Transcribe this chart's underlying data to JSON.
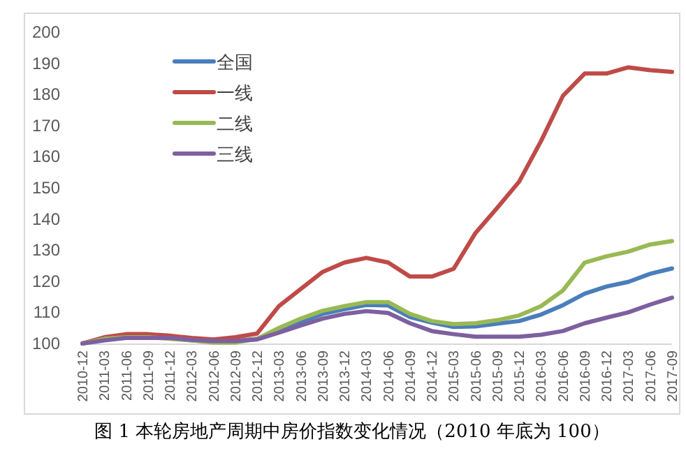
{
  "chart_data": {
    "type": "line",
    "x": [
      "2010-12",
      "2011-03",
      "2011-06",
      "2011-09",
      "2011-12",
      "2012-03",
      "2012-06",
      "2012-09",
      "2012-12",
      "2013-03",
      "2013-06",
      "2013-09",
      "2013-12",
      "2014-03",
      "2014-06",
      "2014-09",
      "2014-12",
      "2015-03",
      "2015-06",
      "2015-09",
      "2015-12",
      "2016-03",
      "2016-06",
      "2016-09",
      "2016-12",
      "2017-03",
      "2017-06",
      "2017-09"
    ],
    "xlim": [
      "2010-12",
      "2017-09"
    ],
    "xticks": [
      "2010-12",
      "2011-03",
      "2011-06",
      "2011-09",
      "2011-12",
      "2012-03",
      "2012-06",
      "2012-09",
      "2012-12",
      "2013-03",
      "2013-06",
      "2013-09",
      "2013-12",
      "2014-03",
      "2014-06",
      "2014-09",
      "2014-12",
      "2015-03",
      "2015-06",
      "2015-09",
      "2015-12",
      "2016-03",
      "2016-06",
      "2016-09",
      "2016-12",
      "2017-03",
      "2017-06",
      "2017-09"
    ],
    "ylim": [
      100,
      200
    ],
    "yticks": [
      100,
      110,
      120,
      130,
      140,
      150,
      160,
      170,
      180,
      190,
      200
    ],
    "series": [
      {
        "name": "全国",
        "color": "#4a7ebb",
        "values": [
          100,
          101.5,
          102.2,
          102.2,
          101.8,
          101,
          100.8,
          100.8,
          101.5,
          104.5,
          107,
          109.5,
          111,
          112.4,
          112.2,
          108.5,
          106.7,
          105.3,
          105.5,
          106.4,
          107.2,
          109.3,
          112.3,
          116,
          118.3,
          119.8,
          122.4,
          124.1
        ]
      },
      {
        "name": "一线",
        "color": "#be4b48",
        "values": [
          100,
          102,
          103,
          103,
          102.5,
          101.8,
          101.3,
          102,
          103.2,
          112,
          117.5,
          123,
          126,
          127.5,
          126,
          121.5,
          121.5,
          124,
          135.5,
          143.6,
          152,
          165,
          179.5,
          186.7,
          186.7,
          188.7,
          187.8,
          187.2
        ]
      },
      {
        "name": "二线",
        "color": "#98b954",
        "values": [
          100,
          101.5,
          102,
          102,
          101.5,
          101,
          100.3,
          100.3,
          101.5,
          105,
          108,
          110.5,
          112,
          113.3,
          113.3,
          109.5,
          107.2,
          106.2,
          106.5,
          107.5,
          109,
          112,
          117,
          126,
          128,
          129.5,
          131.8,
          132.9
        ]
      },
      {
        "name": "三线",
        "color": "#7d60a0",
        "values": [
          100,
          101,
          101.8,
          101.8,
          101.8,
          101.2,
          100.8,
          100.8,
          101.3,
          103.5,
          105.8,
          108,
          109.5,
          110.4,
          109.8,
          106.5,
          104,
          103,
          102.2,
          102.2,
          102.2,
          102.8,
          104,
          106.5,
          108.3,
          110,
          112.5,
          114.7
        ]
      }
    ],
    "legend": "top left",
    "annotations": [
      "图 1 本轮房地产周期中房价指数变化情况（2010 年底为 100）"
    ]
  }
}
